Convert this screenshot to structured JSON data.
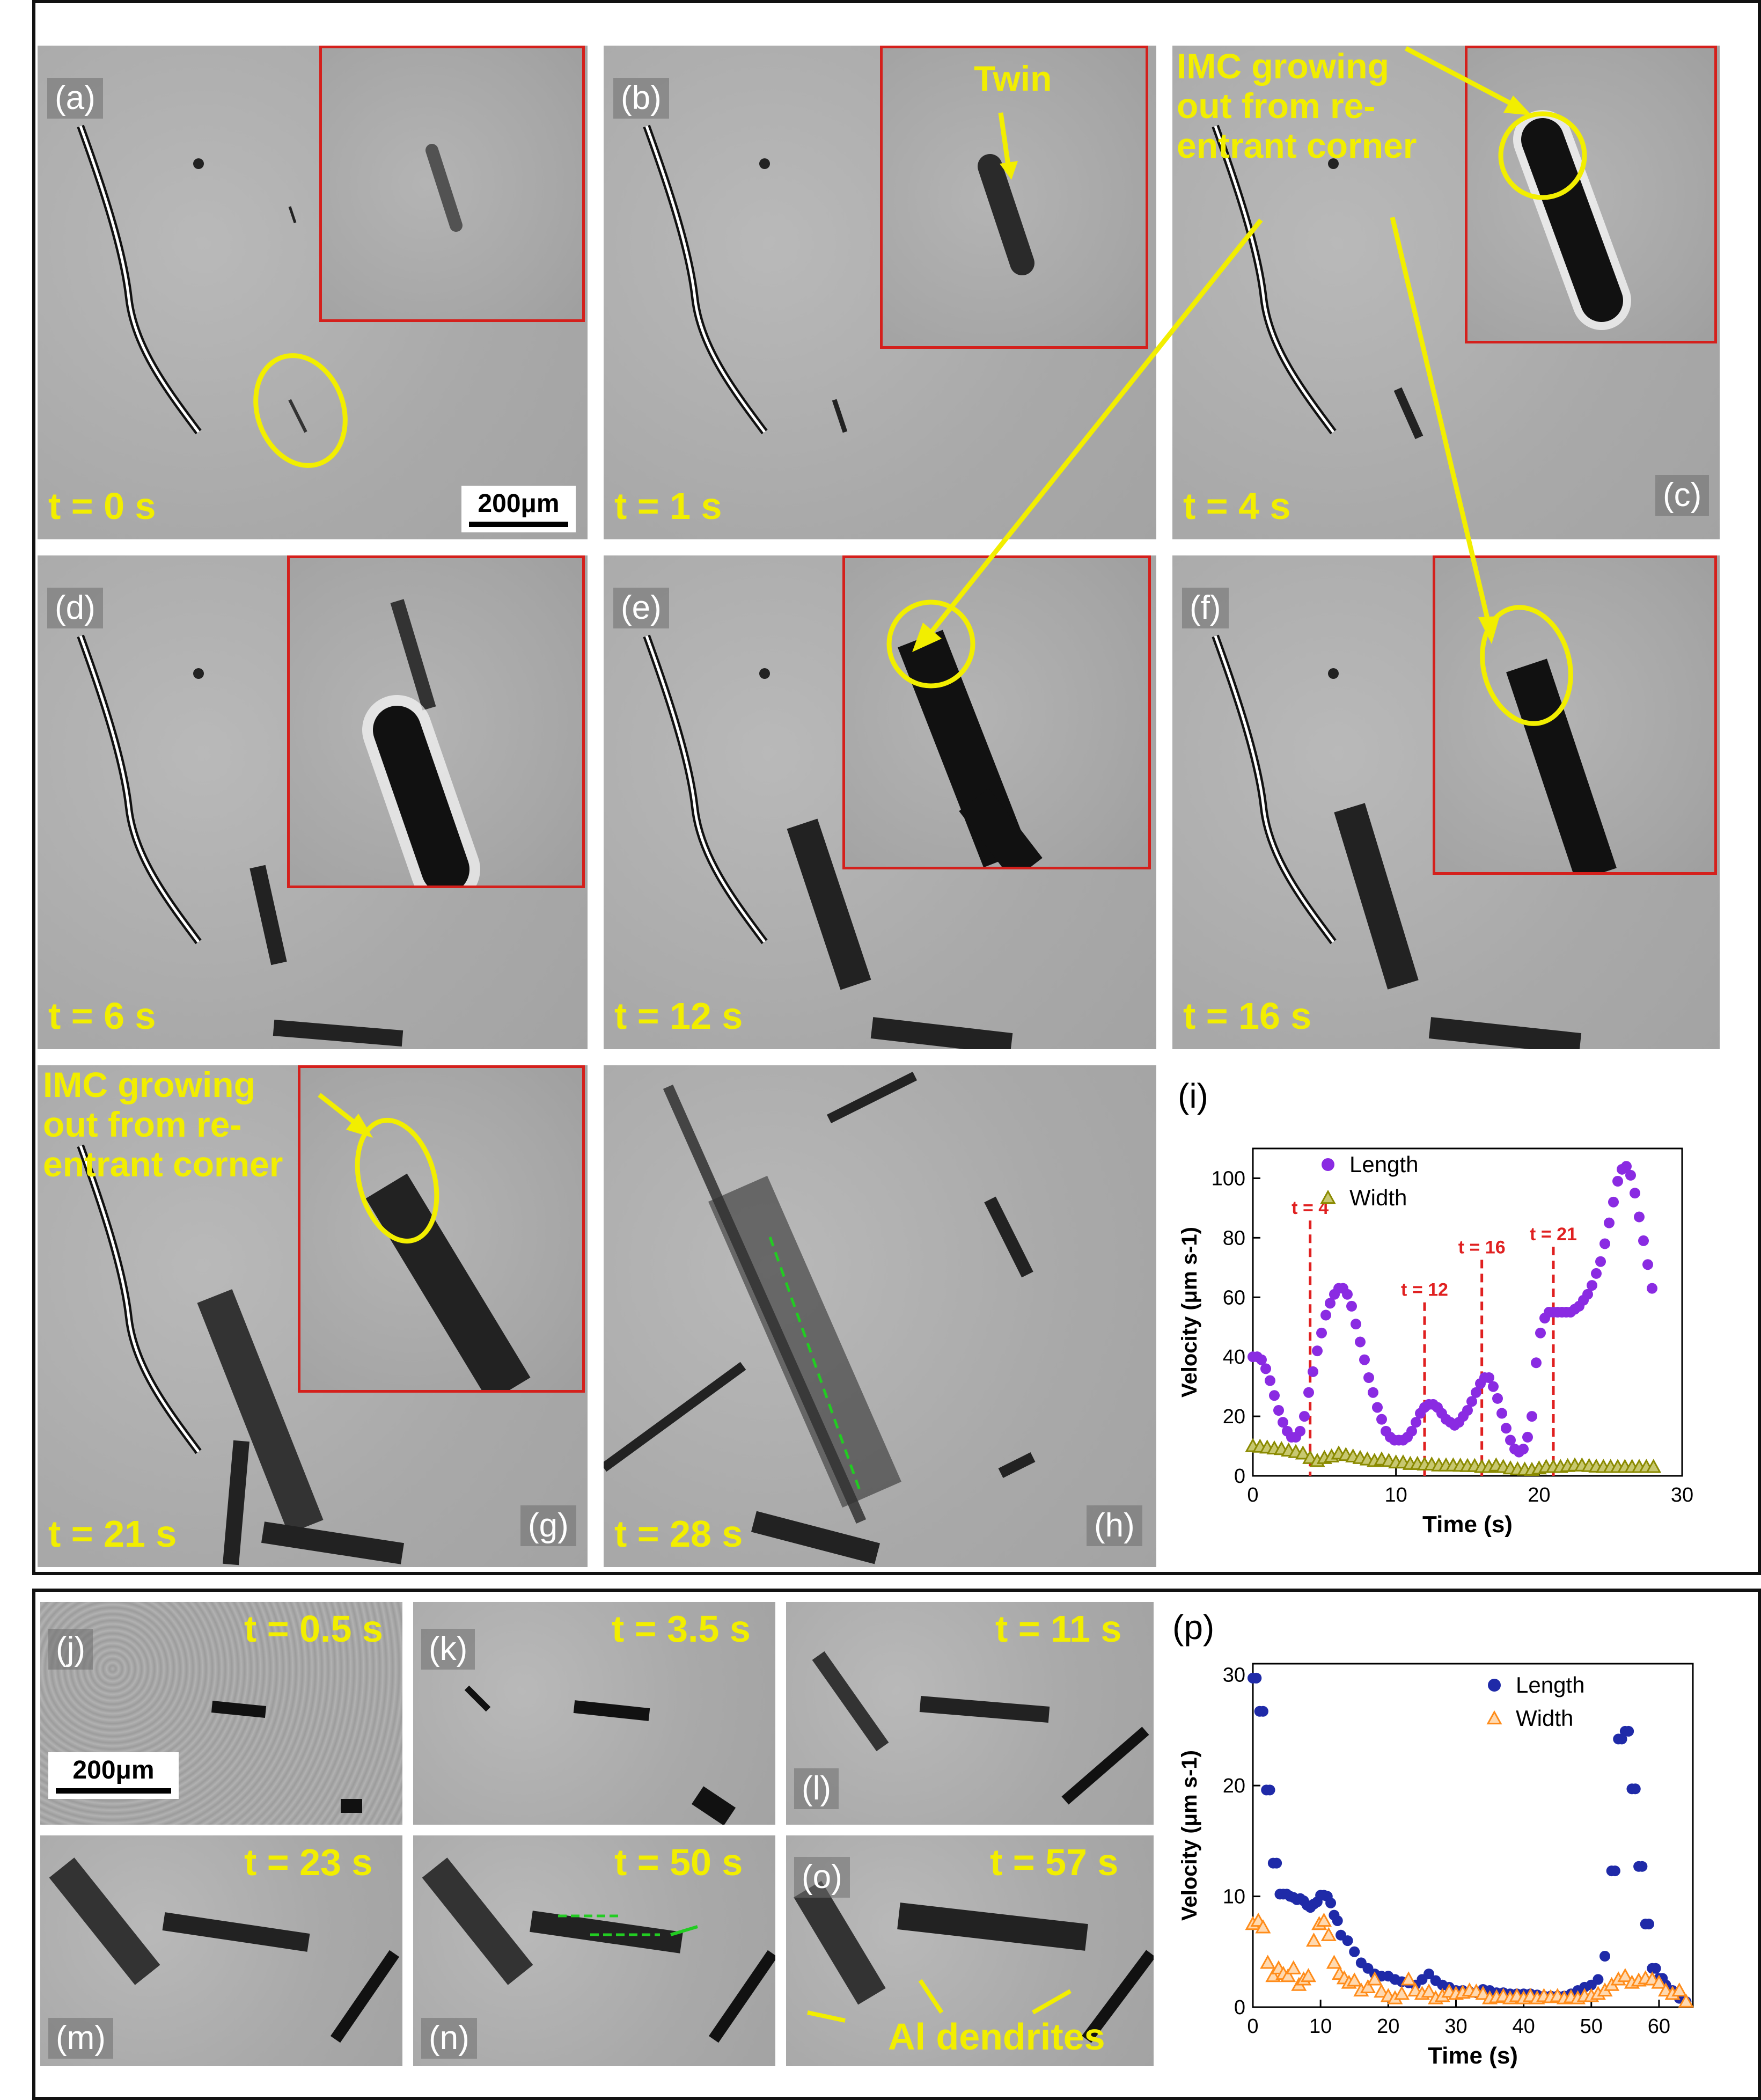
{
  "figure_top": {
    "panels": [
      {
        "id": "a",
        "label": "(a)",
        "time": "t = 0 s"
      },
      {
        "id": "b",
        "label": "(b)",
        "time": "t = 1 s"
      },
      {
        "id": "c",
        "label": "(c)",
        "time": "t = 4 s"
      },
      {
        "id": "d",
        "label": "(d)",
        "time": "t = 6 s"
      },
      {
        "id": "e",
        "label": "(e)",
        "time": "t = 12 s"
      },
      {
        "id": "f",
        "label": "(f)",
        "time": "t = 16 s"
      },
      {
        "id": "g",
        "label": "(g)",
        "time": "t = 21 s"
      },
      {
        "id": "h",
        "label": "(h)",
        "time": "t = 28 s"
      }
    ],
    "scalebar": "200μm",
    "twin_label": "Twin",
    "imc_annotation": "IMC growing\nout from re-\nentrant corner",
    "chart_label": "(i)"
  },
  "figure_bottom": {
    "panels": [
      {
        "id": "j",
        "label": "(j)",
        "time": "t = 0.5 s"
      },
      {
        "id": "k",
        "label": "(k)",
        "time": "t = 3.5 s"
      },
      {
        "id": "l",
        "label": "(l)",
        "time": "t = 11 s"
      },
      {
        "id": "m",
        "label": "(m)",
        "time": "t = 23 s"
      },
      {
        "id": "n",
        "label": "(n)",
        "time": "t = 50 s"
      },
      {
        "id": "o",
        "label": "(o)",
        "time": "t = 57 s"
      }
    ],
    "scalebar": "200μm",
    "dendrite_label": "Al dendrites",
    "chart_label": "(p)"
  },
  "colors": {
    "time_label": "#f2ee00",
    "inset_border": "#d4201c",
    "length_i": "#8a2be2",
    "width_i": "#8a8a00",
    "length_p": "#1f2aa8",
    "width_p": "#ff8c1a",
    "marker_line": "#e02020",
    "guide_line": "#22cc22"
  },
  "chart_data": [
    {
      "type": "scatter",
      "panel": "(i)",
      "xlabel": "Time (s)",
      "ylabel": "Velocity (μm s-1)",
      "xlim": [
        0,
        30
      ],
      "ylim": [
        0,
        110
      ],
      "xticks": [
        0,
        10,
        20,
        30
      ],
      "yticks": [
        0,
        20,
        40,
        60,
        80,
        100
      ],
      "legend_position": "top-left",
      "series": [
        {
          "name": "Length",
          "marker": "circle",
          "x": [
            0,
            0.3,
            0.6,
            0.9,
            1.2,
            1.5,
            1.8,
            2.1,
            2.4,
            2.7,
            3.0,
            3.3,
            3.6,
            3.9,
            4.2,
            4.5,
            4.8,
            5.1,
            5.4,
            5.7,
            6.0,
            6.3,
            6.6,
            6.9,
            7.2,
            7.5,
            7.8,
            8.1,
            8.4,
            8.7,
            9.0,
            9.3,
            9.6,
            9.9,
            10.2,
            10.5,
            10.8,
            11.1,
            11.4,
            11.7,
            12.0,
            12.3,
            12.6,
            12.9,
            13.2,
            13.5,
            13.8,
            14.1,
            14.4,
            14.7,
            15.0,
            15.3,
            15.6,
            15.9,
            16.2,
            16.5,
            16.8,
            17.1,
            17.4,
            17.7,
            18.0,
            18.3,
            18.6,
            18.9,
            19.2,
            19.5,
            19.8,
            20.1,
            20.4,
            20.7,
            21.0,
            21.3,
            21.6,
            21.9,
            22.2,
            22.5,
            22.8,
            23.1,
            23.4,
            23.7,
            24.0,
            24.3,
            24.6,
            24.9,
            25.2,
            25.5,
            25.8,
            26.1,
            26.4,
            26.7,
            27.0,
            27.3,
            27.6,
            27.9
          ],
          "y": [
            40,
            40,
            39,
            36,
            32,
            27,
            22,
            18,
            15,
            13,
            13,
            15,
            20,
            28,
            35,
            42,
            48,
            54,
            58,
            61,
            63,
            63,
            61,
            57,
            51,
            45,
            39,
            33,
            28,
            23,
            19,
            15,
            13,
            12,
            12,
            12,
            13,
            15,
            18,
            21,
            23,
            24,
            24,
            23,
            21,
            19,
            18,
            17,
            18,
            20,
            22,
            25,
            28,
            31,
            33,
            33,
            30,
            26,
            21,
            16,
            12,
            9,
            8,
            9,
            13,
            20,
            38,
            48,
            53,
            55,
            55,
            55,
            55,
            55,
            55,
            56,
            57,
            59,
            61,
            64,
            68,
            72,
            78,
            85,
            92,
            99,
            103,
            104,
            101,
            95,
            87,
            79,
            71,
            63
          ]
        },
        {
          "name": "Width",
          "marker": "triangle",
          "x": [
            0,
            0.5,
            1,
            1.5,
            2,
            2.5,
            3,
            3.5,
            4,
            4.5,
            5,
            5.5,
            6,
            6.5,
            7,
            7.5,
            8,
            8.5,
            9,
            9.5,
            10,
            10.5,
            11,
            11.5,
            12,
            12.5,
            13,
            13.5,
            14,
            14.5,
            15,
            15.5,
            16,
            16.5,
            17,
            17.5,
            18,
            18.5,
            19,
            19.5,
            20,
            20.5,
            21,
            21.5,
            22,
            22.5,
            23,
            23.5,
            24,
            24.5,
            25,
            25.5,
            26,
            26.5,
            27,
            27.5,
            28
          ],
          "y": [
            10,
            9.8,
            9.5,
            9.2,
            9,
            8.5,
            8,
            7.5,
            6,
            5,
            6,
            6.5,
            7.5,
            7,
            6.5,
            6,
            5.5,
            5,
            5.5,
            5,
            4.5,
            4.5,
            4,
            4,
            3.8,
            3.8,
            3.5,
            3.5,
            3.5,
            3.4,
            3.3,
            3.3,
            3,
            3,
            3.5,
            3,
            2.5,
            2.2,
            2.1,
            2,
            2.5,
            3,
            3,
            3,
            3.3,
            3.5,
            3.5,
            3.3,
            3.1,
            3,
            3,
            3,
            3,
            3,
            3,
            3,
            3
          ]
        }
      ],
      "annotations": [
        {
          "text": "t = 4",
          "x": 4
        },
        {
          "text": "t = 12",
          "x": 12
        },
        {
          "text": "t = 16",
          "x": 16
        },
        {
          "text": "t = 21",
          "x": 21
        }
      ]
    },
    {
      "type": "scatter",
      "panel": "(p)",
      "xlabel": "Time (s)",
      "ylabel": "Velocity (μm s-1)",
      "xlim": [
        0,
        65
      ],
      "ylim": [
        0,
        31
      ],
      "xticks": [
        0,
        10,
        20,
        30,
        40,
        50,
        60
      ],
      "yticks": [
        0,
        10,
        20,
        30
      ],
      "legend_position": "top-right",
      "series": [
        {
          "name": "Length",
          "marker": "circle",
          "x": [
            0,
            0.5,
            1,
            1.5,
            2,
            2.5,
            3,
            3.5,
            4,
            4.5,
            5,
            5.5,
            6,
            6.5,
            7,
            7.5,
            8,
            8.5,
            9,
            9.5,
            10,
            10.5,
            11,
            11.5,
            12,
            12.5,
            13,
            14,
            15,
            16,
            17,
            18,
            19,
            20,
            21,
            22,
            23,
            24,
            25,
            26,
            27,
            28,
            29,
            30,
            31,
            32,
            33,
            34,
            35,
            36,
            37,
            38,
            39,
            40,
            41,
            42,
            43,
            44,
            45,
            46,
            47,
            48,
            49,
            50,
            51,
            52,
            53,
            53.5,
            54,
            54.5,
            55,
            55.5,
            56,
            56.5,
            57,
            57.5,
            58,
            58.5,
            59,
            59.5,
            60,
            60.5,
            61,
            62,
            63,
            64
          ],
          "y": [
            29.7,
            29.7,
            26.7,
            26.7,
            19.6,
            19.6,
            13,
            13,
            10.2,
            10.2,
            10.2,
            10,
            9.9,
            9.7,
            9.8,
            9.6,
            9.2,
            9.0,
            9.3,
            9.5,
            10.1,
            10.1,
            10,
            9.4,
            8.3,
            7.8,
            6.5,
            6,
            5,
            4,
            3.5,
            3,
            2.8,
            2.8,
            2.5,
            2.3,
            2.2,
            2,
            2.5,
            3,
            2.4,
            2,
            1.8,
            1.5,
            1.5,
            1.4,
            1.3,
            1.6,
            1.5,
            1.3,
            1.3,
            1.2,
            1.2,
            1.2,
            1.2,
            1.1,
            1,
            1,
            1,
            1,
            1.2,
            1.5,
            1.8,
            2.0,
            2.5,
            4.6,
            12.3,
            12.3,
            24.2,
            24.2,
            24.9,
            24.9,
            19.7,
            19.7,
            12.7,
            12.7,
            7.5,
            7.5,
            3.5,
            3.5,
            2.6,
            2.6,
            2,
            1.5,
            0.8,
            0.5
          ]
        },
        {
          "name": "Width",
          "marker": "triangle",
          "x": [
            0,
            0.8,
            1.5,
            2.2,
            3,
            3.8,
            4.5,
            5.2,
            6,
            6.8,
            7.5,
            8.2,
            9,
            9.8,
            10.5,
            11.2,
            12,
            12.8,
            13.5,
            14.2,
            15,
            16,
            17,
            18,
            19,
            20,
            21,
            22,
            23,
            24,
            25,
            26,
            27,
            28,
            29,
            30,
            31,
            32,
            33,
            34,
            35,
            36,
            37,
            38,
            39,
            40,
            41,
            42,
            43,
            44,
            45,
            46,
            47,
            48,
            49,
            50,
            51,
            52,
            53,
            54,
            55,
            56,
            57,
            58,
            59,
            60,
            61,
            62,
            63,
            64
          ],
          "y": [
            7.5,
            7.8,
            7.2,
            4,
            2.8,
            3.5,
            3,
            2.8,
            3.5,
            2,
            2.5,
            2.8,
            6,
            7.5,
            7.8,
            6.5,
            4,
            3,
            2.6,
            2.2,
            2.4,
            1.5,
            1.8,
            2.5,
            1.4,
            1,
            0.8,
            1.2,
            2.5,
            1.5,
            1.2,
            1.4,
            0.8,
            1,
            1.4,
            1.2,
            1.3,
            1.5,
            1.4,
            1.2,
            0.8,
            0.9,
            1,
            0.8,
            1,
            0.8,
            1,
            0.8,
            1,
            0.9,
            1,
            0.8,
            0.9,
            0.8,
            1,
            1,
            1.2,
            1.5,
            2,
            2.5,
            2.8,
            2.2,
            2.4,
            2.6,
            2.5,
            2.2,
            1.5,
            1.2,
            1.5,
            0.5
          ]
        }
      ]
    }
  ]
}
